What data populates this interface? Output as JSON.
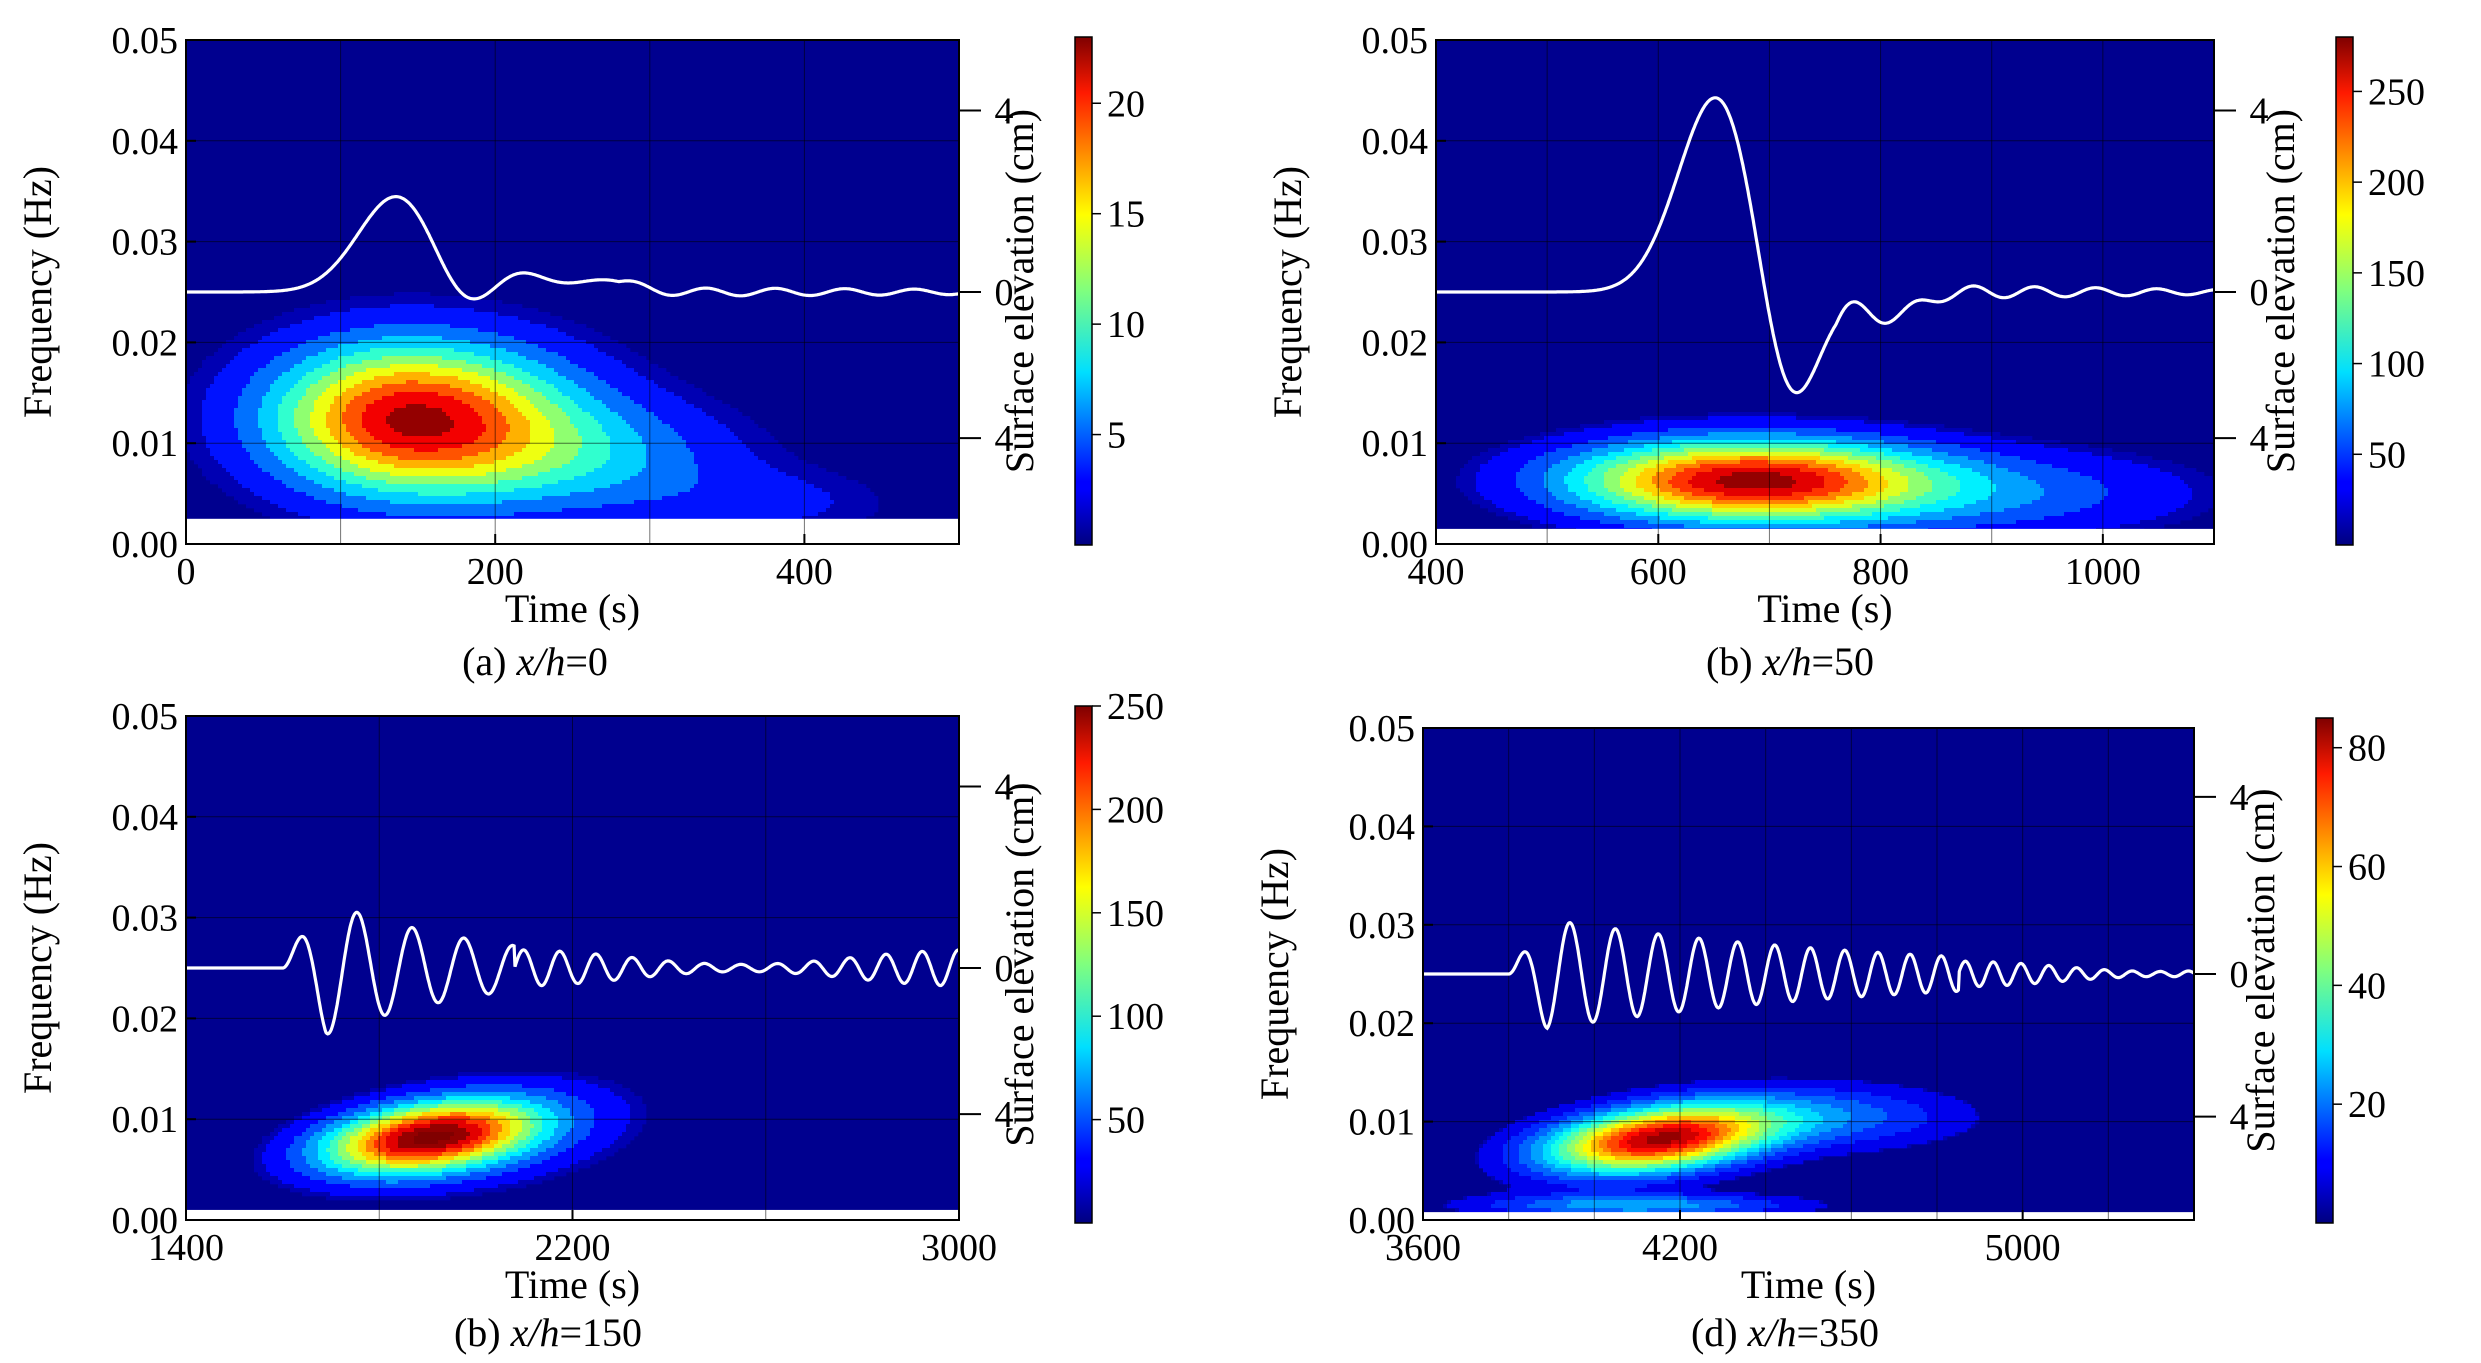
{
  "chart_data": [
    {
      "type": "heatmap",
      "panel_label": "(a) x/h=0",
      "caption": {
        "prefix": "(a) ",
        "var": "x/h",
        "suffix": "=0"
      },
      "xlabel": "Time (s)",
      "ylabel": "Frequency (Hz)",
      "right_label": "Surface elevation (cm)",
      "xlim": [
        0,
        500
      ],
      "ylim": [
        0,
        0.05
      ],
      "xticks": [
        0,
        200,
        400
      ],
      "xgrid": [
        100,
        200,
        300,
        400
      ],
      "yticks": [
        0.0,
        0.01,
        0.02,
        0.03,
        0.04,
        0.05
      ],
      "elev_ticks": [
        "4",
        "0",
        "4"
      ],
      "colorbar": {
        "min": 0,
        "max": 23,
        "ticks": [
          5,
          10,
          15,
          20
        ]
      },
      "blobs": [
        {
          "t": 145,
          "f": 0.0125,
          "st": 70,
          "sf": 0.0052,
          "amp": 23,
          "skew_t": 0.9
        },
        {
          "t": 260,
          "f": 0.0085,
          "st": 70,
          "sf": 0.004,
          "amp": 6
        },
        {
          "t": 380,
          "f": 0.004,
          "st": 60,
          "sf": 0.0025,
          "amp": 2.5
        }
      ],
      "levels": 10,
      "cutoff_f": 0.0025,
      "elevation": {
        "baseline_f": 0.025,
        "components": [
          {
            "t0": 0,
            "amp": 0.0098,
            "t": 138,
            "w": 26,
            "kind": "gauss"
          },
          {
            "t0": 0,
            "amp": -0.0035,
            "t": 180,
            "w": 20,
            "kind": "gauss"
          },
          {
            "t0": 0,
            "amp": 0.0025,
            "t": 212,
            "w": 18,
            "kind": "gauss"
          },
          {
            "t0": 0,
            "amp": 0.0012,
            "t": 270,
            "w": 18,
            "kind": "gauss"
          }
        ],
        "ripple": {
          "start": 280,
          "amp": 0.0004,
          "period": 45
        }
      }
    },
    {
      "type": "heatmap",
      "panel_label": "(b) x/h=50",
      "caption": {
        "prefix": "(b) ",
        "var": "x/h",
        "suffix": "=50"
      },
      "xlabel": "Time (s)",
      "ylabel": "Frequency (Hz)",
      "right_label": "Surface elevation (cm)",
      "xlim": [
        400,
        1100
      ],
      "ylim": [
        0,
        0.05
      ],
      "xticks": [
        400,
        600,
        800,
        1000
      ],
      "xgrid": [
        500,
        600,
        700,
        800,
        900,
        1000
      ],
      "yticks": [
        0.0,
        0.01,
        0.02,
        0.03,
        0.04,
        0.05
      ],
      "elev_ticks": [
        "4",
        "0",
        "4"
      ],
      "colorbar": {
        "min": 0,
        "max": 280,
        "ticks": [
          50,
          100,
          150,
          200,
          250
        ]
      },
      "blobs": [
        {
          "t": 680,
          "f": 0.0063,
          "st": 110,
          "sf": 0.0028,
          "amp": 280
        },
        {
          "t": 900,
          "f": 0.005,
          "st": 130,
          "sf": 0.003,
          "amp": 60
        }
      ],
      "levels": 12,
      "cutoff_f": 0.0015,
      "elevation": {
        "baseline_f": 0.025,
        "components": [
          {
            "t0": 0,
            "amp": 0.02,
            "t": 655,
            "w": 36,
            "kind": "gauss"
          },
          {
            "t0": 0,
            "amp": -0.0138,
            "t": 716,
            "w": 26,
            "kind": "gauss"
          },
          {
            "t0": 0,
            "amp": -0.0025,
            "t": 810,
            "w": 22,
            "kind": "gauss"
          }
        ],
        "ripple": {
          "start": 760,
          "amp": 0.0007,
          "period": 55
        }
      }
    },
    {
      "type": "heatmap",
      "panel_label": "(b) x/h=150",
      "caption": {
        "prefix": "(b) ",
        "var": "x/h",
        "suffix": "=150"
      },
      "xlabel": "Time (s)",
      "ylabel": "Frequency (Hz)",
      "right_label": "Surface elevation (cm)",
      "xlim": [
        1400,
        3000
      ],
      "ylim": [
        0,
        0.05
      ],
      "xticks": [
        1400,
        2200,
        3000
      ],
      "xgrid": [
        1800,
        2200,
        2600
      ],
      "yticks": [
        0.0,
        0.01,
        0.02,
        0.03,
        0.04,
        0.05
      ],
      "elev_ticks": [
        "4",
        "0",
        "4"
      ],
      "colorbar": {
        "min": 0,
        "max": 250,
        "ticks": [
          50,
          100,
          150,
          200,
          250
        ]
      },
      "blobs": [
        {
          "t": 1900,
          "f": 0.0082,
          "st": 150,
          "sf": 0.0023,
          "amp": 250,
          "tilt": 6e-06
        },
        {
          "t": 2050,
          "f": 0.0085,
          "st": 200,
          "sf": 0.0035,
          "amp": 40,
          "tilt": 6e-06
        }
      ],
      "levels": 12,
      "cutoff_f": 0.001,
      "elevation": {
        "baseline_f": 0.025,
        "components": [
          {
            "t0": 1600,
            "amp": 0.0085,
            "period": 130,
            "decay": 0.0028,
            "kind": "chirp",
            "t_end": 2080
          }
        ],
        "ripple": {
          "start": 2080,
          "amp": 0.0018,
          "period": 75
        }
      }
    },
    {
      "type": "heatmap",
      "panel_label": "(d) x/h=350",
      "caption": {
        "prefix": "(d) ",
        "var": "x/h",
        "suffix": "=350"
      },
      "xlabel": "Time (s)",
      "ylabel": "Frequency (Hz)",
      "right_label": "Surface elevation (cm)",
      "xlim": [
        3600,
        5400
      ],
      "ylim": [
        0,
        0.05
      ],
      "xticks": [
        3600,
        4200,
        5000
      ],
      "xgrid": [
        3800,
        4000,
        4200,
        4400,
        4600,
        4800,
        5000,
        5200
      ],
      "yticks": [
        0.0,
        0.01,
        0.02,
        0.03,
        0.04,
        0.05
      ],
      "elev_ticks": [
        "4",
        "0",
        "4"
      ],
      "colorbar": {
        "min": 0,
        "max": 85,
        "ticks": [
          20,
          40,
          60,
          80
        ]
      },
      "blobs": [
        {
          "t": 4150,
          "f": 0.0082,
          "st": 180,
          "sf": 0.0022,
          "amp": 85,
          "tilt": 4.5e-06
        },
        {
          "t": 4550,
          "f": 0.0105,
          "st": 220,
          "sf": 0.0022,
          "amp": 18
        },
        {
          "t": 4100,
          "f": 0.0015,
          "st": 250,
          "sf": 0.0008,
          "amp": 25
        }
      ],
      "levels": 16,
      "cutoff_f": 0.0008,
      "elevation": {
        "baseline_f": 0.025,
        "components": [
          {
            "t0": 3800,
            "amp": 0.0062,
            "period": 120,
            "decay": 0.0012,
            "kind": "chirp",
            "t_end": 4850
          }
        ],
        "ripple": {
          "start": 4850,
          "amp": 0.0013,
          "period": 65
        }
      }
    }
  ],
  "colors": {
    "background_field": "#00008f",
    "elevation_line": "#ffffff",
    "contour_line": "#000000"
  }
}
